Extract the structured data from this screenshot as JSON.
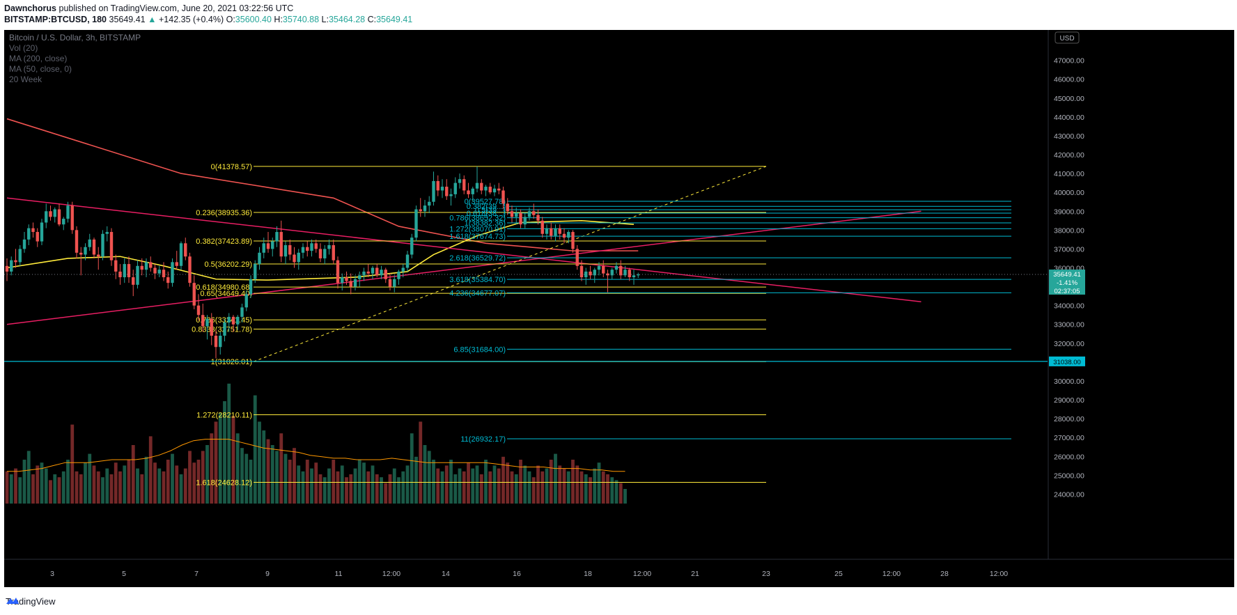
{
  "header": {
    "author": "Dawnchorus",
    "published": "published on TradingView.com, June 20, 2021 03:22:56 UTC",
    "symbol": "BITSTAMP:BTCUSD, 180",
    "last": "35649.41",
    "change_arrow": "▲",
    "change": "+142.35 (+0.4%)",
    "o_label": "O:",
    "o_value": "35600.40",
    "h_label": "H:",
    "h_value": "35740.88",
    "l_label": "L:",
    "l_value": "35464.28",
    "c_label": "C:",
    "c_value": "35649.41"
  },
  "footer": {
    "brand": "TradingView",
    "icon": "tradingview-logo-icon"
  },
  "colors": {
    "background": "#000000",
    "up_candle": "#26a69a",
    "down_candle": "#ef5350",
    "fib_left": "#ffeb3b",
    "fib_right": "#00bcd4",
    "ma200": "#ef5350",
    "ma50": "#ffeb3b",
    "trendline": "#e91e63"
  },
  "chart_data": {
    "type": "candlestick",
    "title": "Bitcoin / U.S. Dollar, 3h, BITSTAMP",
    "indicators": [
      "Vol (20)",
      "MA (200, close)",
      "MA (50, close, 0)",
      "20 Week"
    ],
    "xlabel": "",
    "ylabel": "USD",
    "ylim": [
      23500,
      48500
    ],
    "grid": false,
    "x_ticks": [
      "3",
      "5",
      "7",
      "9",
      "11",
      "12:00",
      "14",
      "16",
      "18",
      "12:00",
      "21",
      "23",
      "25",
      "12:00",
      "28",
      "12:00"
    ],
    "y_ticks": [
      24000,
      25000,
      26000,
      27000,
      28000,
      29000,
      30000,
      31000,
      32000,
      33000,
      34000,
      35000,
      36000,
      37000,
      38000,
      39000,
      40000,
      41000,
      42000,
      43000,
      44000,
      45000,
      46000,
      47000
    ],
    "axis_unit_label": "USD",
    "price_label": {
      "value": "35649.41",
      "change": "-1.41%",
      "countdown": "02:37:05"
    },
    "level_label": "31038.00",
    "candles_3h_ohlc": [
      [
        36100,
        36500,
        35300,
        35800
      ],
      [
        35800,
        36600,
        35600,
        36400
      ],
      [
        36400,
        37000,
        36000,
        36300
      ],
      [
        36300,
        37200,
        36100,
        37000
      ],
      [
        37000,
        37900,
        36800,
        37500
      ],
      [
        37500,
        38300,
        37200,
        38100
      ],
      [
        38100,
        38400,
        37600,
        37900
      ],
      [
        37900,
        38100,
        37100,
        37400
      ],
      [
        37400,
        38600,
        37200,
        38400
      ],
      [
        38400,
        39400,
        38100,
        39000
      ],
      [
        39000,
        39300,
        38500,
        38700
      ],
      [
        38700,
        39200,
        38400,
        39100
      ],
      [
        39100,
        39400,
        38200,
        38300
      ],
      [
        38300,
        38700,
        38000,
        38600
      ],
      [
        38600,
        39500,
        38400,
        39300
      ],
      [
        39300,
        39500,
        37800,
        38000
      ],
      [
        38000,
        38200,
        36500,
        36800
      ],
      [
        36800,
        37100,
        35600,
        36700
      ],
      [
        36700,
        37300,
        36400,
        37100
      ],
      [
        37100,
        37800,
        36900,
        37500
      ],
      [
        37500,
        37600,
        36500,
        36700
      ],
      [
        36700,
        37100,
        35900,
        36600
      ],
      [
        36600,
        38000,
        36400,
        37800
      ],
      [
        37800,
        38200,
        37400,
        37900
      ],
      [
        37900,
        38100,
        36100,
        36400
      ],
      [
        36400,
        36700,
        35400,
        35800
      ],
      [
        35800,
        36200,
        35100,
        35500
      ],
      [
        35500,
        36500,
        35200,
        36200
      ],
      [
        36200,
        36600,
        35200,
        35500
      ],
      [
        35500,
        35900,
        34500,
        35100
      ],
      [
        35100,
        36400,
        34900,
        36100
      ],
      [
        36100,
        36500,
        35600,
        35900
      ],
      [
        35900,
        36500,
        35500,
        36300
      ],
      [
        36300,
        36600,
        35800,
        36000
      ],
      [
        36000,
        36200,
        35400,
        35700
      ],
      [
        35700,
        36100,
        35500,
        35900
      ],
      [
        35900,
        36300,
        35300,
        35500
      ],
      [
        35500,
        35800,
        34900,
        35200
      ],
      [
        35200,
        36500,
        35000,
        36300
      ],
      [
        36300,
        36900,
        35900,
        36100
      ],
      [
        36100,
        37400,
        35900,
        37300
      ],
      [
        37300,
        37600,
        36400,
        36600
      ],
      [
        36600,
        36800,
        35000,
        35200
      ],
      [
        35200,
        35600,
        33800,
        34000
      ],
      [
        34000,
        34600,
        33200,
        33500
      ],
      [
        33500,
        34100,
        32600,
        32900
      ],
      [
        32900,
        33500,
        32200,
        33300
      ],
      [
        33300,
        33600,
        31900,
        32400
      ],
      [
        32400,
        32700,
        31200,
        31800
      ],
      [
        31800,
        32600,
        31400,
        32400
      ],
      [
        32400,
        33300,
        32100,
        33100
      ],
      [
        33100,
        33600,
        32600,
        33400
      ],
      [
        33400,
        33500,
        32600,
        33000
      ],
      [
        33000,
        33500,
        32700,
        33400
      ],
      [
        33400,
        34100,
        33100,
        33900
      ],
      [
        33900,
        34800,
        33700,
        34600
      ],
      [
        34600,
        35600,
        34400,
        35400
      ],
      [
        35400,
        36400,
        35200,
        36200
      ],
      [
        36200,
        37100,
        35900,
        36800
      ],
      [
        36800,
        37600,
        36500,
        37300
      ],
      [
        37300,
        37900,
        36800,
        37000
      ],
      [
        37000,
        37600,
        36600,
        37400
      ],
      [
        37400,
        38200,
        37100,
        37900
      ],
      [
        37900,
        38500,
        36300,
        36600
      ],
      [
        36600,
        37400,
        36200,
        37200
      ],
      [
        37200,
        37500,
        36400,
        36700
      ],
      [
        36700,
        37100,
        36000,
        36300
      ],
      [
        36300,
        37000,
        35900,
        36800
      ],
      [
        36800,
        37300,
        36500,
        37100
      ],
      [
        37100,
        37400,
        36600,
        36900
      ],
      [
        36900,
        37500,
        36600,
        37300
      ],
      [
        37300,
        37500,
        36800,
        37000
      ],
      [
        37000,
        37300,
        36300,
        36500
      ],
      [
        36500,
        37200,
        36200,
        37000
      ],
      [
        37000,
        37500,
        36700,
        37200
      ],
      [
        37200,
        37500,
        36200,
        36400
      ],
      [
        36400,
        36600,
        34900,
        35200
      ],
      [
        35200,
        35700,
        34800,
        35500
      ],
      [
        35500,
        35800,
        35100,
        35300
      ],
      [
        35300,
        35700,
        34600,
        35000
      ],
      [
        35000,
        35600,
        34800,
        35400
      ],
      [
        35400,
        35800,
        35000,
        35600
      ],
      [
        35600,
        36000,
        35300,
        35800
      ],
      [
        35800,
        36200,
        35500,
        35700
      ],
      [
        35700,
        36100,
        35400,
        36000
      ],
      [
        36000,
        36200,
        35500,
        35600
      ],
      [
        35600,
        36100,
        35400,
        35900
      ],
      [
        35900,
        36000,
        35200,
        35400
      ],
      [
        35400,
        35700,
        34800,
        35000
      ],
      [
        35000,
        35600,
        34700,
        35400
      ],
      [
        35400,
        35900,
        35100,
        35800
      ],
      [
        35800,
        36200,
        35500,
        36000
      ],
      [
        36000,
        36900,
        35800,
        36700
      ],
      [
        36700,
        37800,
        36500,
        37600
      ],
      [
        37600,
        39300,
        37400,
        39100
      ],
      [
        39100,
        39700,
        38700,
        39000
      ],
      [
        39000,
        39600,
        38700,
        39300
      ],
      [
        39300,
        39800,
        38900,
        39500
      ],
      [
        39500,
        41100,
        39300,
        40600
      ],
      [
        40600,
        40900,
        39800,
        40100
      ],
      [
        40100,
        40700,
        39700,
        40300
      ],
      [
        40300,
        40700,
        39600,
        39800
      ],
      [
        39800,
        40200,
        39300,
        39900
      ],
      [
        39900,
        40800,
        39700,
        40500
      ],
      [
        40500,
        41000,
        40200,
        40700
      ],
      [
        40700,
        40900,
        39900,
        40100
      ],
      [
        40100,
        40500,
        39700,
        39900
      ],
      [
        39900,
        40300,
        39500,
        40200
      ],
      [
        40200,
        41378,
        40000,
        40500
      ],
      [
        40500,
        40700,
        39900,
        40100
      ],
      [
        40100,
        40400,
        39800,
        40300
      ],
      [
        40300,
        40500,
        39900,
        40000
      ],
      [
        40000,
        40400,
        39800,
        40200
      ],
      [
        40200,
        40500,
        39900,
        40100
      ],
      [
        40100,
        40300,
        39100,
        39400
      ],
      [
        39400,
        39700,
        38800,
        39000
      ],
      [
        39000,
        39300,
        38400,
        38700
      ],
      [
        38700,
        39200,
        38300,
        38900
      ],
      [
        38900,
        39100,
        38100,
        38300
      ],
      [
        38300,
        38900,
        38100,
        38700
      ],
      [
        38700,
        39200,
        38500,
        39000
      ],
      [
        39000,
        39400,
        38600,
        38800
      ],
      [
        38800,
        39100,
        38300,
        38500
      ],
      [
        38500,
        38700,
        37600,
        37800
      ],
      [
        37800,
        38300,
        37500,
        38100
      ],
      [
        38100,
        38400,
        37500,
        37700
      ],
      [
        37700,
        38300,
        37400,
        38100
      ],
      [
        38100,
        38300,
        37500,
        37800
      ],
      [
        37800,
        38100,
        37300,
        37600
      ],
      [
        37600,
        38000,
        37300,
        37900
      ],
      [
        37900,
        38000,
        36800,
        37000
      ],
      [
        37000,
        37200,
        35900,
        36100
      ],
      [
        36100,
        36400,
        35300,
        35500
      ],
      [
        35500,
        36000,
        35100,
        35800
      ],
      [
        35800,
        36100,
        35400,
        35600
      ],
      [
        35600,
        36000,
        35200,
        35900
      ],
      [
        35900,
        36300,
        35600,
        36100
      ],
      [
        36100,
        36400,
        35500,
        35700
      ],
      [
        35700,
        35900,
        34700,
        35600
      ],
      [
        35600,
        36000,
        35400,
        35900
      ],
      [
        35900,
        36300,
        35700,
        36100
      ],
      [
        36100,
        36400,
        35400,
        35600
      ],
      [
        35600,
        36100,
        35500,
        35900
      ],
      [
        35900,
        36000,
        35300,
        35500
      ],
      [
        35500,
        35900,
        35100,
        35600
      ],
      [
        35600,
        35740,
        35464,
        35649
      ]
    ],
    "ma200": [
      [
        0,
        43900
      ],
      [
        40,
        41000
      ],
      [
        75,
        39700
      ],
      [
        90,
        38200
      ],
      [
        110,
        37300
      ],
      [
        130,
        36900
      ],
      [
        145,
        36900
      ]
    ],
    "ma50": [
      [
        0,
        36000
      ],
      [
        14,
        36500
      ],
      [
        26,
        36600
      ],
      [
        36,
        36100
      ],
      [
        48,
        35400
      ],
      [
        60,
        35350
      ],
      [
        80,
        35500
      ],
      [
        92,
        35800
      ],
      [
        98,
        36700
      ],
      [
        108,
        37700
      ],
      [
        118,
        38400
      ],
      [
        132,
        38500
      ],
      [
        144,
        38300
      ]
    ],
    "trendlines": [
      {
        "name": "upper",
        "from": [
          0,
          39700
        ],
        "to": [
          210,
          34200
        ]
      },
      {
        "name": "lower",
        "from": [
          0,
          33000
        ],
        "to": [
          210,
          39000
        ]
      }
    ],
    "fib_left": {
      "range": [
        31026.01,
        41378.57
      ],
      "levels": [
        {
          "label": "0(41378.57)",
          "value": 41378.57
        },
        {
          "label": "0.236(38935.36)",
          "value": 38935.36
        },
        {
          "label": "0.382(37423.89)",
          "value": 37423.89
        },
        {
          "label": "0.5(36202.29)",
          "value": 36202.29
        },
        {
          "label": "0.618(34980.68)",
          "value": 34980.68
        },
        {
          "label": "0.65(34649.40)",
          "value": 34649.4
        },
        {
          "label": "0.786(33241.45)",
          "value": 33241.45
        },
        {
          "label": "0.8333(32751.78)",
          "value": 32751.78
        },
        {
          "label": "1(31026.01)",
          "value": 31026.01
        },
        {
          "label": "1.272(28210.11)",
          "value": 28210.11
        },
        {
          "label": "1.618(24628.12)",
          "value": 24628.12
        }
      ]
    },
    "fib_right": {
      "levels": [
        {
          "label": "0(39527.78)",
          "value": 39527.78
        },
        {
          "label": "0.382(39...)",
          "value": 39260
        },
        {
          "label": "0.5(39...)",
          "value": 39080
        },
        {
          "label": "0.618(38...)",
          "value": 38900
        },
        {
          "label": "0.786(38652.32)",
          "value": 38652.32
        },
        {
          "label": "1(38382.36)",
          "value": 38382.36
        },
        {
          "label": "1.272(38070.91)",
          "value": 38070.91
        },
        {
          "label": "1.618(37674.73)",
          "value": 37674.73
        },
        {
          "label": "2.618(36529.72)",
          "value": 36529.72
        },
        {
          "label": "3.618(35384.70)",
          "value": 35384.7
        },
        {
          "label": "4.236(34677.07)",
          "value": 34677.07
        },
        {
          "label": "6.85(31684.00)",
          "value": 31684.0
        },
        {
          "label": "11(26932.17)",
          "value": 26932.17
        }
      ]
    },
    "horizontal_line": 31038.0,
    "volume_relative": [
      22,
      20,
      24,
      18,
      30,
      36,
      20,
      26,
      28,
      24,
      16,
      20,
      18,
      22,
      30,
      54,
      22,
      20,
      28,
      34,
      26,
      22,
      18,
      24,
      20,
      28,
      22,
      26,
      30,
      40,
      24,
      20,
      32,
      46,
      28,
      24,
      22,
      30,
      34,
      26,
      20,
      24,
      36,
      28,
      30,
      36,
      40,
      48,
      56,
      62,
      70,
      82,
      60,
      48,
      38,
      34,
      30,
      74,
      56,
      50,
      44,
      40,
      36,
      48,
      34,
      30,
      38,
      26,
      22,
      30,
      24,
      28,
      20,
      18,
      24,
      30,
      22,
      26,
      18,
      20,
      24,
      30,
      28,
      22,
      26,
      20,
      18,
      14,
      20,
      24,
      18,
      22,
      26,
      48,
      32,
      56,
      40,
      36,
      30,
      24,
      22,
      26,
      30,
      20,
      24,
      22,
      28,
      24,
      26,
      20,
      30,
      22,
      26,
      24,
      32,
      28,
      22,
      20,
      30,
      26,
      22,
      18,
      26,
      22,
      24,
      30,
      34,
      26,
      24,
      22,
      30,
      26,
      22,
      20,
      18,
      24,
      28,
      22,
      20,
      18,
      16,
      14,
      10
    ],
    "volume_ma": [
      22,
      22,
      23,
      24,
      26,
      28,
      28,
      28,
      29,
      30,
      30,
      30,
      31,
      33,
      36,
      40,
      43,
      44,
      44,
      44,
      42,
      40,
      38,
      37,
      36,
      35,
      33,
      32,
      31,
      31,
      30,
      30,
      30,
      31,
      30,
      29,
      28,
      28,
      28,
      28,
      28,
      28,
      27,
      26,
      25,
      25,
      25,
      24,
      24,
      24,
      23,
      23,
      22,
      22
    ]
  }
}
